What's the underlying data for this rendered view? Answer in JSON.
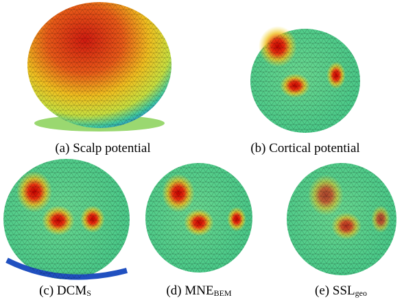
{
  "panels": [
    {
      "label": "(a)",
      "text": "Scalp potential"
    },
    {
      "label": "(b)",
      "text": "Cortical potential"
    },
    {
      "label": "(c)",
      "text": "DCM",
      "subscript": "S"
    },
    {
      "label": "(d)",
      "text": "MNE",
      "subscript": "BEM"
    },
    {
      "label": "(e)",
      "text": "SSL",
      "subscript": "geo"
    }
  ]
}
